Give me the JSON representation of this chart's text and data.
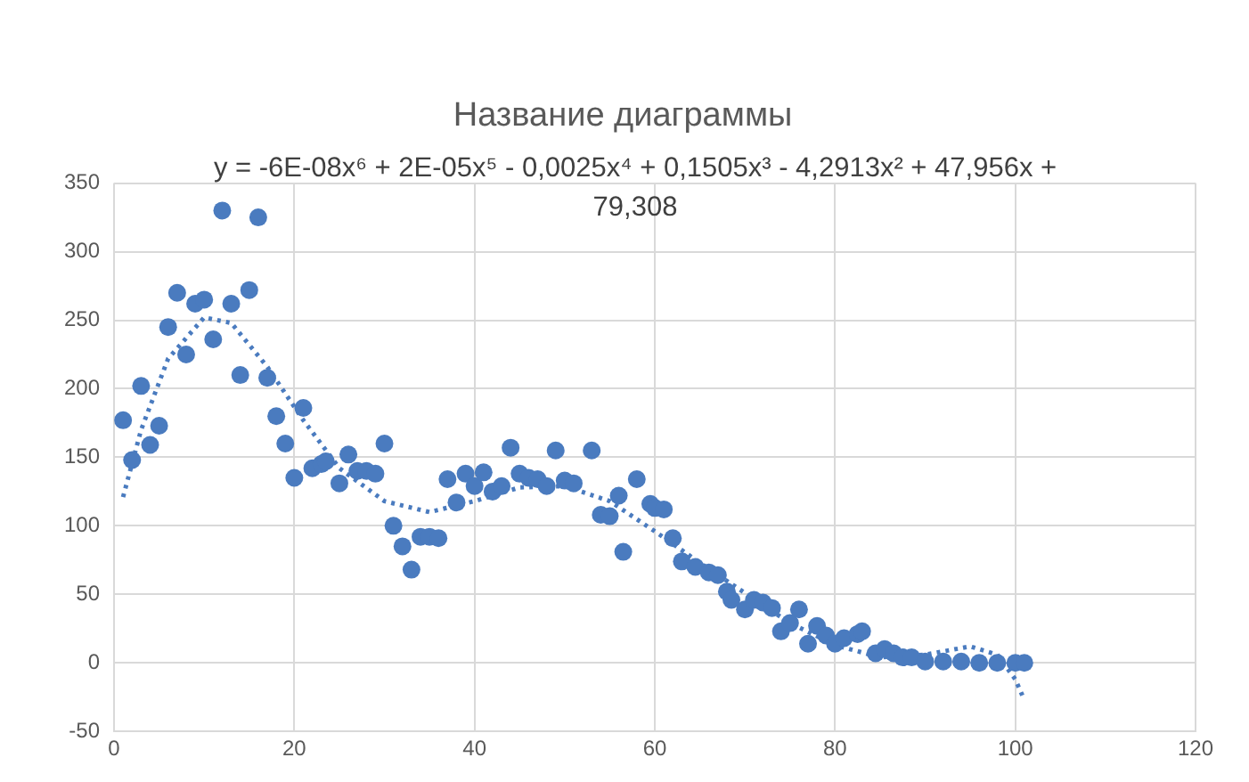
{
  "chart_data": {
    "type": "scatter",
    "title": "Название диаграммы",
    "annotations": [
      "y = -6E-08x⁶ + 2E-05x⁵ - 0,0025x⁴ + 0,1505x³ - 4,2913x² + 47,956x + 79,308"
    ],
    "xlim": [
      0,
      120
    ],
    "xticks": [
      0,
      20,
      40,
      60,
      80,
      100,
      120
    ],
    "ylim": [
      -50,
      350
    ],
    "yticks": [
      -50,
      0,
      50,
      100,
      150,
      200,
      250,
      300,
      350
    ],
    "grid": true,
    "legend": false,
    "series": [
      {
        "type": "scatter",
        "color": "#4a7bbf",
        "marker": "circle",
        "x": [
          1,
          2,
          3,
          4,
          5,
          6,
          7,
          8,
          9,
          10,
          11,
          12,
          13,
          14,
          15,
          16,
          17,
          18,
          19,
          20,
          21,
          22,
          23,
          23.5,
          25,
          26,
          27,
          28,
          29,
          30,
          31,
          32,
          33,
          34,
          35,
          36,
          37,
          38,
          39,
          40,
          41,
          42,
          43,
          44,
          45,
          46,
          47,
          48,
          49,
          50,
          51,
          53,
          54,
          55,
          56,
          56.5,
          58,
          59.5,
          60,
          61,
          62,
          63,
          64.5,
          66,
          67,
          68,
          68.5,
          70,
          71,
          72,
          73,
          74,
          75,
          76,
          77,
          78,
          79,
          80,
          81,
          82.5,
          83,
          84.5,
          85.5,
          86.5,
          87.5,
          88.5,
          90,
          92,
          94,
          96,
          98,
          100,
          101
        ],
        "values": [
          177,
          148,
          202,
          159,
          173,
          245,
          270,
          225,
          262,
          265,
          236,
          330,
          262,
          210,
          272,
          325,
          208,
          180,
          160,
          135,
          186,
          142,
          145,
          147,
          131,
          152,
          140,
          140,
          138,
          160,
          100,
          85,
          68,
          92,
          92,
          91,
          134,
          117,
          138,
          129,
          139,
          125,
          129,
          157,
          138,
          135,
          134,
          129,
          155,
          133,
          131,
          155,
          108,
          107,
          122,
          81,
          134,
          116,
          113,
          112,
          91,
          74,
          70,
          66,
          64,
          52,
          46,
          39,
          46,
          44,
          40,
          23,
          29,
          39,
          14,
          27,
          20,
          14,
          18,
          21,
          23,
          7,
          10,
          7,
          4,
          4,
          1,
          1,
          1,
          0,
          0,
          0,
          0
        ]
      },
      {
        "type": "line",
        "color": "#4a7bbf",
        "marker": "none",
        "line_style": "dotted",
        "x": [
          1,
          3,
          6,
          10,
          13,
          17,
          21,
          25,
          30,
          35,
          40,
          45,
          50,
          55,
          60,
          65,
          70,
          75,
          80,
          85,
          90,
          95,
          98,
          100,
          101
        ],
        "values": [
          121,
          170,
          222,
          252,
          248,
          216,
          177,
          142,
          118,
          110,
          118,
          128,
          129,
          118,
          96,
          73,
          51,
          29,
          13,
          4,
          6,
          12,
          6,
          -12,
          -27
        ]
      }
    ]
  }
}
